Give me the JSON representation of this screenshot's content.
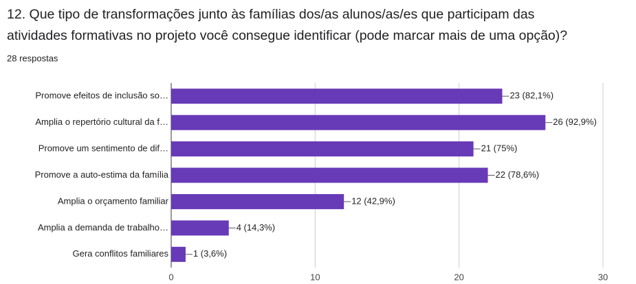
{
  "chart_data": {
    "type": "bar",
    "orientation": "horizontal",
    "title": [
      "12. Que tipo de transformações junto às famílias dos/as alunos/as/es que participam das",
      "atividades formativas no projeto você consegue identificar (pode marcar mais de uma opção)?"
    ],
    "subtitle": "28 respostas",
    "categories": [
      "Promove efeitos de inclusão so…",
      "Amplia o repertório cultural da f…",
      "Promove um sentimento de dif…",
      "Promove a auto-estima da família",
      "Amplia o orçamento familiar",
      "Amplia a demanda de trabalho…",
      "Gera conflitos familiares"
    ],
    "values": [
      23,
      26,
      21,
      22,
      12,
      4,
      1
    ],
    "value_labels": [
      "23 (82,1%)",
      "26 (92,9%)",
      "21 (75%)",
      "22 (78,6%)",
      "12 (42,9%)",
      "4 (14,3%)",
      "1 (3,6%)"
    ],
    "color": "#673ab7",
    "xlim": [
      0,
      30
    ],
    "xticks": [
      0,
      10,
      20,
      30
    ],
    "grid": true
  }
}
